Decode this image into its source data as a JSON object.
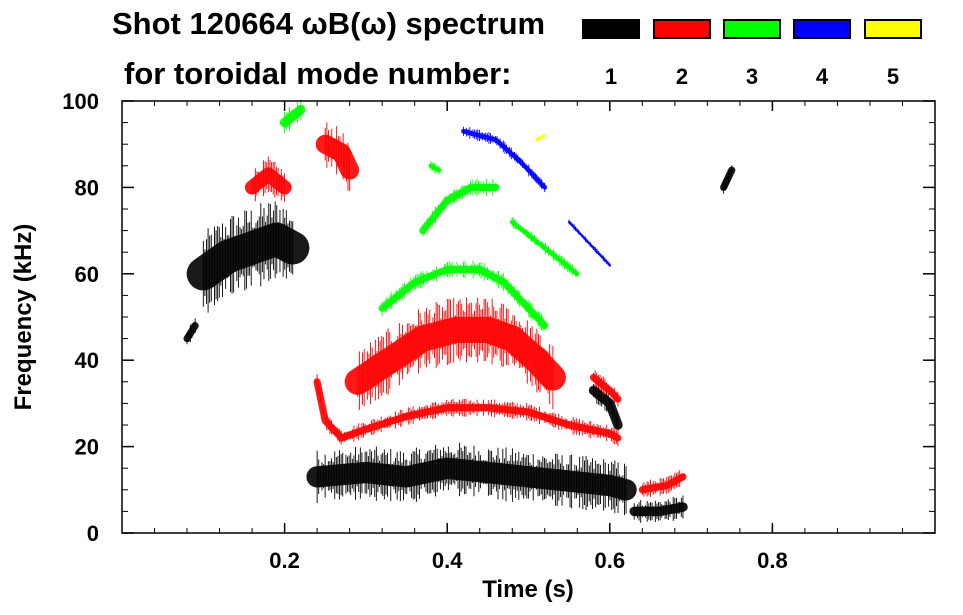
{
  "title": {
    "line1": "Shot 120664 ωB(ω) spectrum",
    "line2": "for toroidal mode number:"
  },
  "legend": [
    {
      "label": "1",
      "color": "#000000"
    },
    {
      "label": "2",
      "color": "#ff0000"
    },
    {
      "label": "3",
      "color": "#00ff00"
    },
    {
      "label": "4",
      "color": "#0000ff"
    },
    {
      "label": "5",
      "color": "#ffff00"
    }
  ],
  "chart_data": {
    "type": "heatmap",
    "xlabel": "Time (s)",
    "ylabel": "Frequency (kHz)",
    "xlim": [
      0.0,
      1.0
    ],
    "ylim": [
      0,
      100
    ],
    "x_tick_labels": [
      "0.2",
      "0.4",
      "0.6",
      "0.8"
    ],
    "x_ticks": [
      0.2,
      0.4,
      0.6,
      0.8
    ],
    "y_tick_labels": [
      "0",
      "20",
      "40",
      "60",
      "80",
      "100"
    ],
    "y_ticks": [
      0,
      20,
      40,
      60,
      80,
      100
    ],
    "grid": false,
    "series": [
      {
        "name": "1",
        "color": "#000000",
        "features": [
          {
            "kind": "band",
            "points": [
              [
                0.1,
                60
              ],
              [
                0.13,
                64
              ],
              [
                0.16,
                66
              ],
              [
                0.19,
                68
              ],
              [
                0.21,
                66
              ]
            ],
            "width": 14
          },
          {
            "kind": "band",
            "points": [
              [
                0.24,
                13
              ],
              [
                0.3,
                14
              ],
              [
                0.35,
                13
              ],
              [
                0.4,
                15
              ],
              [
                0.45,
                14
              ],
              [
                0.5,
                13
              ],
              [
                0.55,
                12
              ],
              [
                0.6,
                11
              ],
              [
                0.62,
                10
              ]
            ],
            "width": 9
          },
          {
            "kind": "band",
            "points": [
              [
                0.58,
                33
              ],
              [
                0.6,
                30
              ],
              [
                0.61,
                25
              ]
            ],
            "width": 4
          },
          {
            "kind": "band",
            "points": [
              [
                0.63,
                5
              ],
              [
                0.66,
                5
              ],
              [
                0.69,
                6
              ]
            ],
            "width": 4
          },
          {
            "kind": "band",
            "points": [
              [
                0.08,
                45
              ],
              [
                0.09,
                48
              ]
            ],
            "width": 3
          },
          {
            "kind": "band",
            "points": [
              [
                0.74,
                80
              ],
              [
                0.75,
                84
              ]
            ],
            "width": 3
          }
        ]
      },
      {
        "name": "2",
        "color": "#ff0000",
        "features": [
          {
            "kind": "band",
            "points": [
              [
                0.16,
                80
              ],
              [
                0.18,
                83
              ],
              [
                0.2,
                80
              ]
            ],
            "width": 6
          },
          {
            "kind": "band",
            "points": [
              [
                0.25,
                90
              ],
              [
                0.27,
                88
              ],
              [
                0.28,
                84
              ]
            ],
            "width": 8
          },
          {
            "kind": "band",
            "points": [
              [
                0.24,
                35
              ],
              [
                0.25,
                26
              ],
              [
                0.27,
                22
              ],
              [
                0.3,
                24
              ],
              [
                0.35,
                27
              ],
              [
                0.4,
                29
              ],
              [
                0.45,
                29
              ],
              [
                0.5,
                28
              ],
              [
                0.55,
                25
              ],
              [
                0.6,
                23
              ],
              [
                0.61,
                22
              ]
            ],
            "width": 3
          },
          {
            "kind": "band",
            "points": [
              [
                0.29,
                35
              ],
              [
                0.33,
                40
              ],
              [
                0.37,
                45
              ],
              [
                0.41,
                47
              ],
              [
                0.45,
                47
              ],
              [
                0.48,
                45
              ],
              [
                0.51,
                40
              ],
              [
                0.53,
                36
              ]
            ],
            "width": 11
          },
          {
            "kind": "band",
            "points": [
              [
                0.58,
                36
              ],
              [
                0.6,
                33
              ],
              [
                0.61,
                31
              ]
            ],
            "width": 3
          },
          {
            "kind": "band",
            "points": [
              [
                0.64,
                10
              ],
              [
                0.67,
                11
              ],
              [
                0.69,
                13
              ]
            ],
            "width": 3
          }
        ]
      },
      {
        "name": "3",
        "color": "#00ff00",
        "features": [
          {
            "kind": "band",
            "points": [
              [
                0.37,
                70
              ],
              [
                0.4,
                77
              ],
              [
                0.43,
                80
              ],
              [
                0.46,
                80
              ]
            ],
            "width": 3
          },
          {
            "kind": "band",
            "points": [
              [
                0.32,
                52
              ],
              [
                0.36,
                58
              ],
              [
                0.4,
                61
              ],
              [
                0.44,
                61
              ],
              [
                0.47,
                58
              ],
              [
                0.5,
                52
              ],
              [
                0.52,
                48
              ]
            ],
            "width": 3
          },
          {
            "kind": "band",
            "points": [
              [
                0.38,
                85
              ],
              [
                0.39,
                84
              ]
            ],
            "width": 2
          },
          {
            "kind": "band",
            "points": [
              [
                0.2,
                95
              ],
              [
                0.22,
                98
              ]
            ],
            "width": 4
          },
          {
            "kind": "band",
            "points": [
              [
                0.48,
                72
              ],
              [
                0.52,
                66
              ],
              [
                0.56,
                60
              ]
            ],
            "width": 2
          }
        ]
      },
      {
        "name": "4",
        "color": "#0000ff",
        "features": [
          {
            "kind": "band",
            "points": [
              [
                0.42,
                93
              ],
              [
                0.46,
                91
              ],
              [
                0.49,
                86
              ],
              [
                0.52,
                80
              ]
            ],
            "width": 2
          },
          {
            "kind": "band",
            "points": [
              [
                0.55,
                72
              ],
              [
                0.58,
                66
              ],
              [
                0.6,
                62
              ]
            ],
            "width": 1
          }
        ]
      },
      {
        "name": "5",
        "color": "#ffff00",
        "features": [
          {
            "kind": "band",
            "points": [
              [
                0.51,
                91
              ],
              [
                0.52,
                92
              ]
            ],
            "width": 1
          }
        ]
      }
    ]
  }
}
